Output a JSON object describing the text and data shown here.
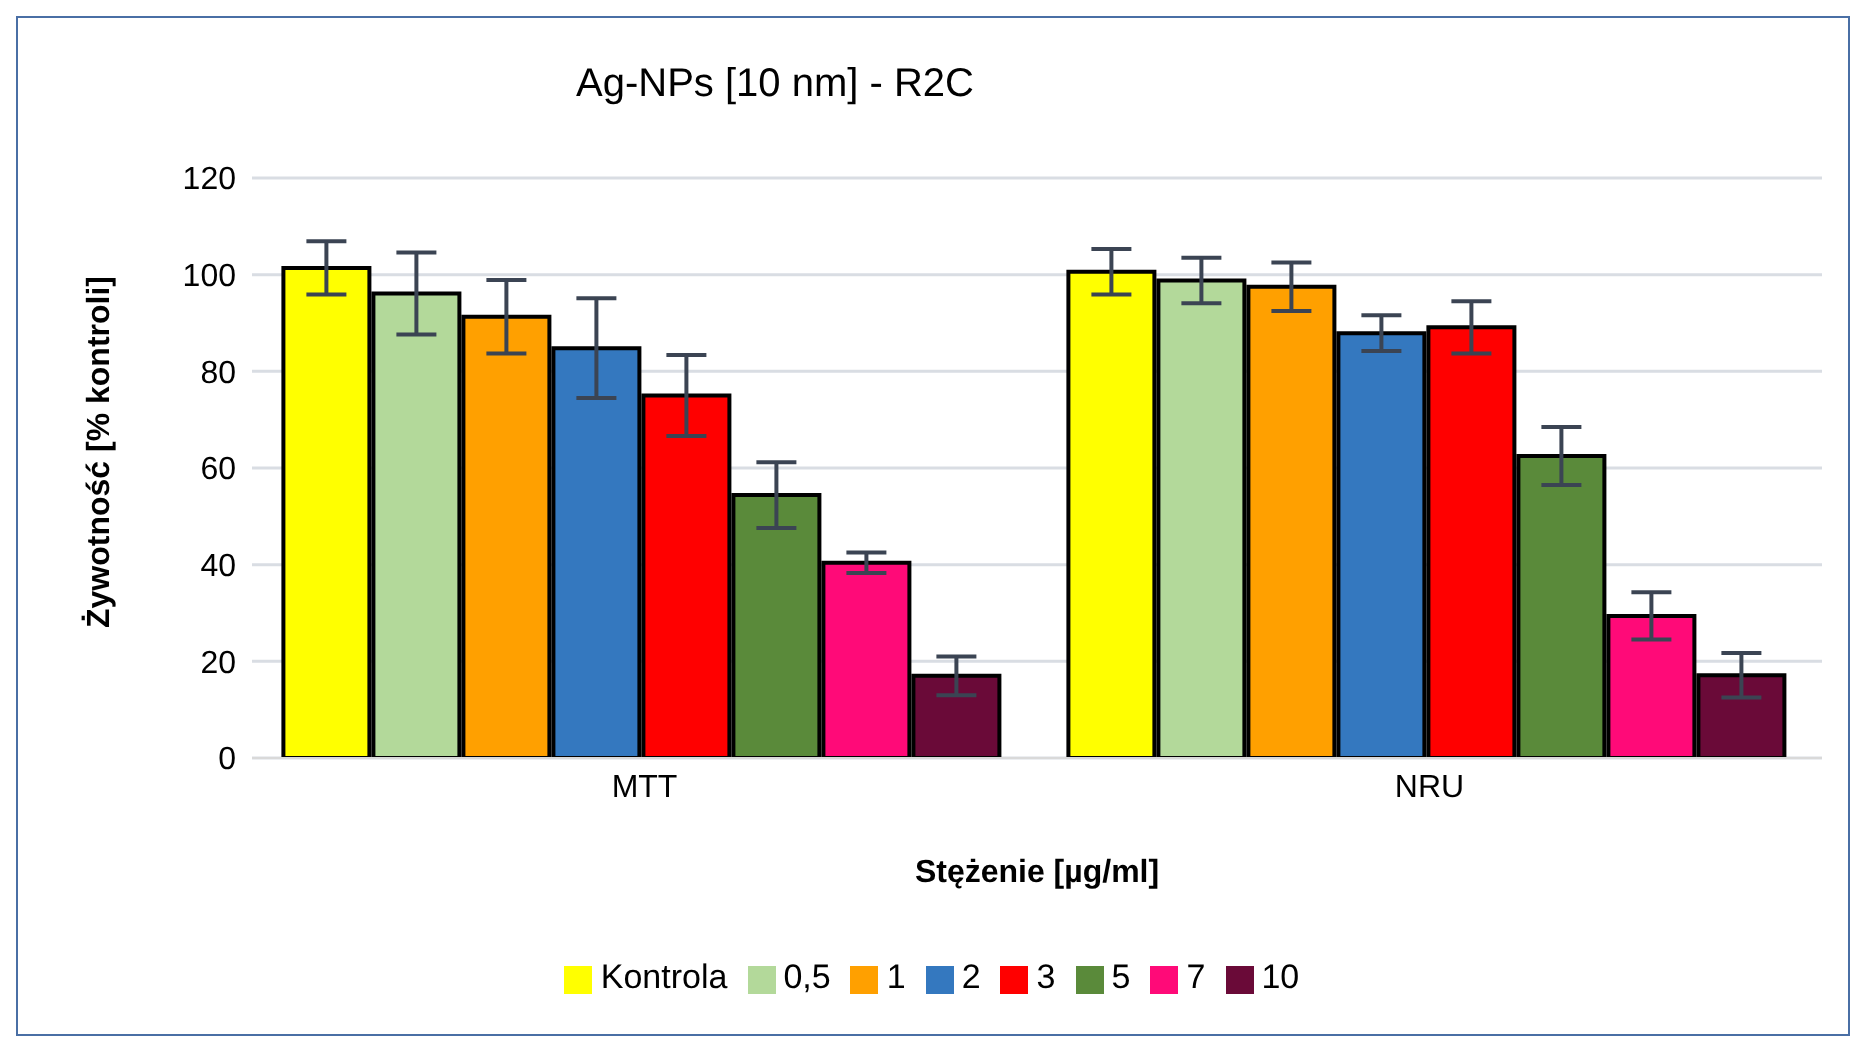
{
  "chart_data": {
    "type": "bar",
    "title": "Ag-NPs [10 nm] - R2C",
    "xlabel": "Stężenie [µg/ml]",
    "ylabel": "Żywotność [% kontroli]",
    "categories": [
      "MTT",
      "NRU"
    ],
    "series": [
      {
        "name": "Kontrola",
        "color": "#ffff00",
        "values": [
          101.4,
          100.6
        ],
        "errors": [
          5.5,
          4.7
        ]
      },
      {
        "name": "0,5",
        "color": "#b3d99a",
        "values": [
          96.1,
          98.8
        ],
        "errors": [
          8.5,
          4.7
        ]
      },
      {
        "name": "1",
        "color": "#ffa000",
        "values": [
          91.3,
          97.5
        ],
        "errors": [
          7.6,
          5
        ]
      },
      {
        "name": "2",
        "color": "#3478bf",
        "values": [
          84.8,
          87.9
        ],
        "errors": [
          10.3,
          3.7
        ]
      },
      {
        "name": "3",
        "color": "#ff0000",
        "values": [
          75,
          89.1
        ],
        "errors": [
          8.4,
          5.4
        ]
      },
      {
        "name": "5",
        "color": "#5a8a3a",
        "values": [
          54.4,
          62.5
        ],
        "errors": [
          6.8,
          6
        ]
      },
      {
        "name": "7",
        "color": "#ff0a78",
        "values": [
          40.4,
          29.4
        ],
        "errors": [
          2.1,
          4.9
        ]
      },
      {
        "name": "10",
        "color": "#6a0a38",
        "values": [
          17,
          17.1
        ],
        "errors": [
          4,
          4.6
        ]
      }
    ],
    "ylim": [
      0,
      120
    ],
    "yticks": [
      0,
      20,
      40,
      60,
      80,
      100,
      120
    ],
    "grid": "y",
    "legend": "bottom"
  }
}
